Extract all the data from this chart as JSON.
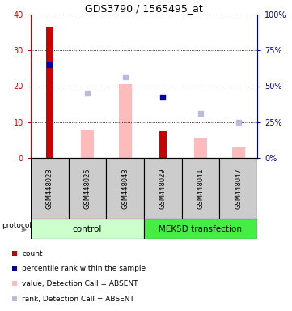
{
  "title": "GDS3790 / 1565495_at",
  "samples": [
    "GSM448023",
    "GSM448025",
    "GSM448043",
    "GSM448029",
    "GSM448041",
    "GSM448047"
  ],
  "groups": [
    "control",
    "control",
    "control",
    "MEK5D transfection",
    "MEK5D transfection",
    "MEK5D transfection"
  ],
  "count_values": [
    36.5,
    0,
    0,
    7.5,
    0,
    0
  ],
  "rank_values": [
    26,
    0,
    0,
    17,
    0,
    0
  ],
  "absent_value_bars": [
    0,
    8,
    20.5,
    0,
    5.5,
    3
  ],
  "absent_rank_dots": [
    0,
    18,
    22.5,
    0,
    12.5,
    10
  ],
  "ylim_left": [
    0,
    40
  ],
  "ylim_right": [
    0,
    100
  ],
  "left_yticks": [
    0,
    10,
    20,
    30,
    40
  ],
  "right_yticks": [
    0,
    25,
    50,
    75,
    100
  ],
  "left_tick_labels": [
    "0",
    "10",
    "20",
    "30",
    "40"
  ],
  "right_tick_labels": [
    "0%",
    "25%",
    "50%",
    "75%",
    "100%"
  ],
  "count_color": "#cc0000",
  "rank_color": "#0000aa",
  "absent_value_color": "#ffbbbb",
  "absent_rank_color": "#bbbbdd",
  "control_bg": "#ccffcc",
  "mek5d_bg": "#44ee44",
  "sample_header_bg": "#cccccc",
  "bar_width": 0.35,
  "dot_size": 22,
  "legend_items": [
    "count",
    "percentile rank within the sample",
    "value, Detection Call = ABSENT",
    "rank, Detection Call = ABSENT"
  ],
  "legend_colors": [
    "#cc0000",
    "#0000aa",
    "#ffbbbb",
    "#bbbbdd"
  ],
  "figsize": [
    3.61,
    3.84
  ],
  "dpi": 100
}
